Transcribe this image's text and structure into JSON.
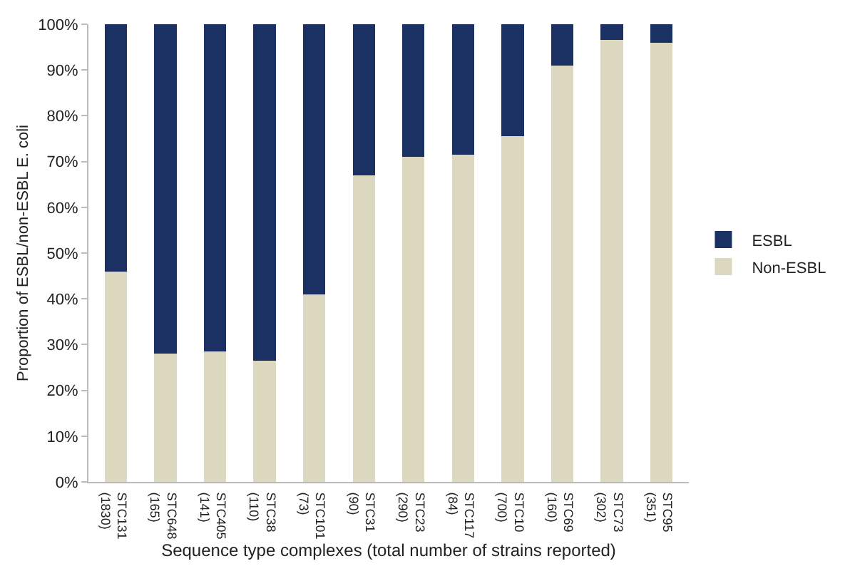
{
  "chart_data": {
    "type": "bar",
    "stacked": true,
    "xlabel": "Sequence type complexes (total number of strains reported)",
    "ylabel": "Proportion of ESBL/non-ESBL E. coli",
    "categories": [
      "STC131\n(1830)",
      "STC648\n(165)",
      "STC405\n(141)",
      "STC38\n(110)",
      "STC101\n(73)",
      "STC31\n(90)",
      "STC23\n(290)",
      "STC117\n(84)",
      "STC10\n(700)",
      "STC69\n(160)",
      "STC73\n(302)",
      "STC95\n(351)"
    ],
    "series": [
      {
        "name": "Non-ESBL",
        "color": "#dcd8c0",
        "values": [
          46,
          28,
          28.5,
          26.5,
          41,
          67,
          71,
          71.5,
          75.5,
          91,
          96.5,
          96
        ]
      },
      {
        "name": "ESBL",
        "color": "#1c3163",
        "values": [
          54,
          72,
          71.5,
          73.5,
          59,
          33,
          29,
          28.5,
          24.5,
          9,
          3.5,
          4
        ]
      }
    ],
    "ylim": [
      0,
      100
    ],
    "yticks": [
      {
        "value": 0,
        "label": "0%"
      },
      {
        "value": 10,
        "label": "10%"
      },
      {
        "value": 20,
        "label": "20%"
      },
      {
        "value": 30,
        "label": "30%"
      },
      {
        "value": 40,
        "label": "40%"
      },
      {
        "value": 50,
        "label": "50%"
      },
      {
        "value": 60,
        "label": "60%"
      },
      {
        "value": 70,
        "label": "70%"
      },
      {
        "value": 80,
        "label": "80%"
      },
      {
        "value": 90,
        "label": "90%"
      },
      {
        "value": 100,
        "label": "100%"
      }
    ],
    "legend": "right"
  }
}
